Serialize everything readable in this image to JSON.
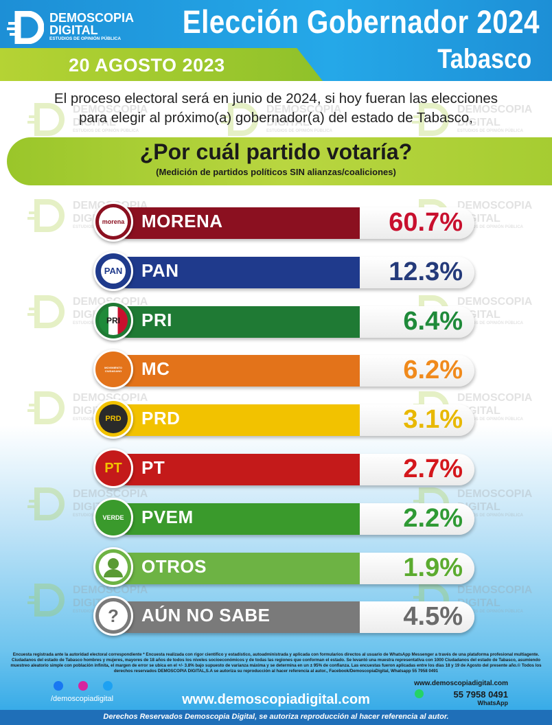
{
  "brand": {
    "name_line1": "DEMOSCOPIA",
    "name_line2": "DIGITAL",
    "tagline": "ESTUDIOS DE OPINIÓN PÚBLICA"
  },
  "header": {
    "title": "Elección Gobernador 2024",
    "subtitle": "Tabasco",
    "date": "20 AGOSTO 2023"
  },
  "intro": {
    "line1": "El proceso electoral será en junio de 2024, si hoy fueran las elecciones",
    "line2": "para elegir al próximo(a) gobernador(a) del estado de Tabasco,"
  },
  "question": {
    "text": "¿Por cuál partido votaría?",
    "note": "(Medición de partidos políticos SIN alianzas/coaliciones)"
  },
  "chart_data": {
    "type": "bar",
    "orientation": "horizontal",
    "categories": [
      "MORENA",
      "PAN",
      "PRI",
      "MC",
      "PRD",
      "PT",
      "PVEM",
      "OTROS",
      "AÚN NO SABE"
    ],
    "values": [
      60.7,
      12.3,
      6.4,
      6.2,
      3.1,
      2.7,
      2.2,
      1.9,
      4.5
    ],
    "value_labels": [
      "60.7%",
      "12.3%",
      "6.4%",
      "6.2%",
      "3.1%",
      "2.7%",
      "2.2%",
      "1.9%",
      "4.5%"
    ],
    "colors": [
      "#8b1020",
      "#1f3a8c",
      "#1f7a34",
      "#e3731a",
      "#f2c200",
      "#c41a1a",
      "#3a9a2c",
      "#6db344",
      "#7a7a7a"
    ],
    "pct_colors": [
      "#c8102e",
      "#243a7a",
      "#1f8a3a",
      "#f08a1c",
      "#e8b800",
      "#d4171c",
      "#2f9a34",
      "#5bab2f",
      "#6a6a6a"
    ],
    "icons": [
      "morena-logo-icon",
      "pan-logo-icon",
      "pri-logo-icon",
      "mc-logo-icon",
      "prd-logo-icon",
      "pt-logo-icon",
      "pvem-logo-icon",
      "person-icon",
      "question-mark-icon"
    ],
    "icon_texts": [
      "morena",
      "PAN",
      "PRI",
      "MOVIMIENTO CIUDADANO",
      "PRD",
      "PT",
      "VERDE",
      "",
      "?"
    ]
  },
  "footer": {
    "disclaimer": "Encuesta registrada ante la autoridad electoral correspondiente * Encuesta realizada con rigor científico y estadístico, autoadministrada y aplicada con formularios directos al usuario de WhatsApp Messenger a través de una plataforma profesional multiagente. Ciudadanos del estado de Tabasco hombres y mujeres, mayores de 18 años de todos los niveles socioeconómicos y de todas las regiones que conforman el estado. Se levantó una muestra representativa con 1000 Ciudadanos del estado de Tabasco, asumiendo muestreo aleatorio simple con población infinita, el margen de error se ubica en el +/- 3.8% bajo supuesto de varianza máxima y se determina en un ± 95% de confianza. Las encuestas fueron aplicadas entre los días 18 y 19 de Agosto del presente año.© Todos los derechos reservados DEMOSCOPIA DIGITAL,S.A se autoriza su reproducción al hacer referencia al autor., Facebook/DemoscopiaDigital, Whatsapp 55 7958 0491",
    "social_handle": "/demoscopiadigital",
    "website": "www.demoscopiadigital.com",
    "contact_website": "www.demoscopiadigital.com",
    "phone": "55 7958 0491",
    "whatsapp_label": "WhatsApp",
    "rights": "Derechos Reservados Demoscopia Digital, se autoriza reproducción al hacer referencia al autor."
  }
}
